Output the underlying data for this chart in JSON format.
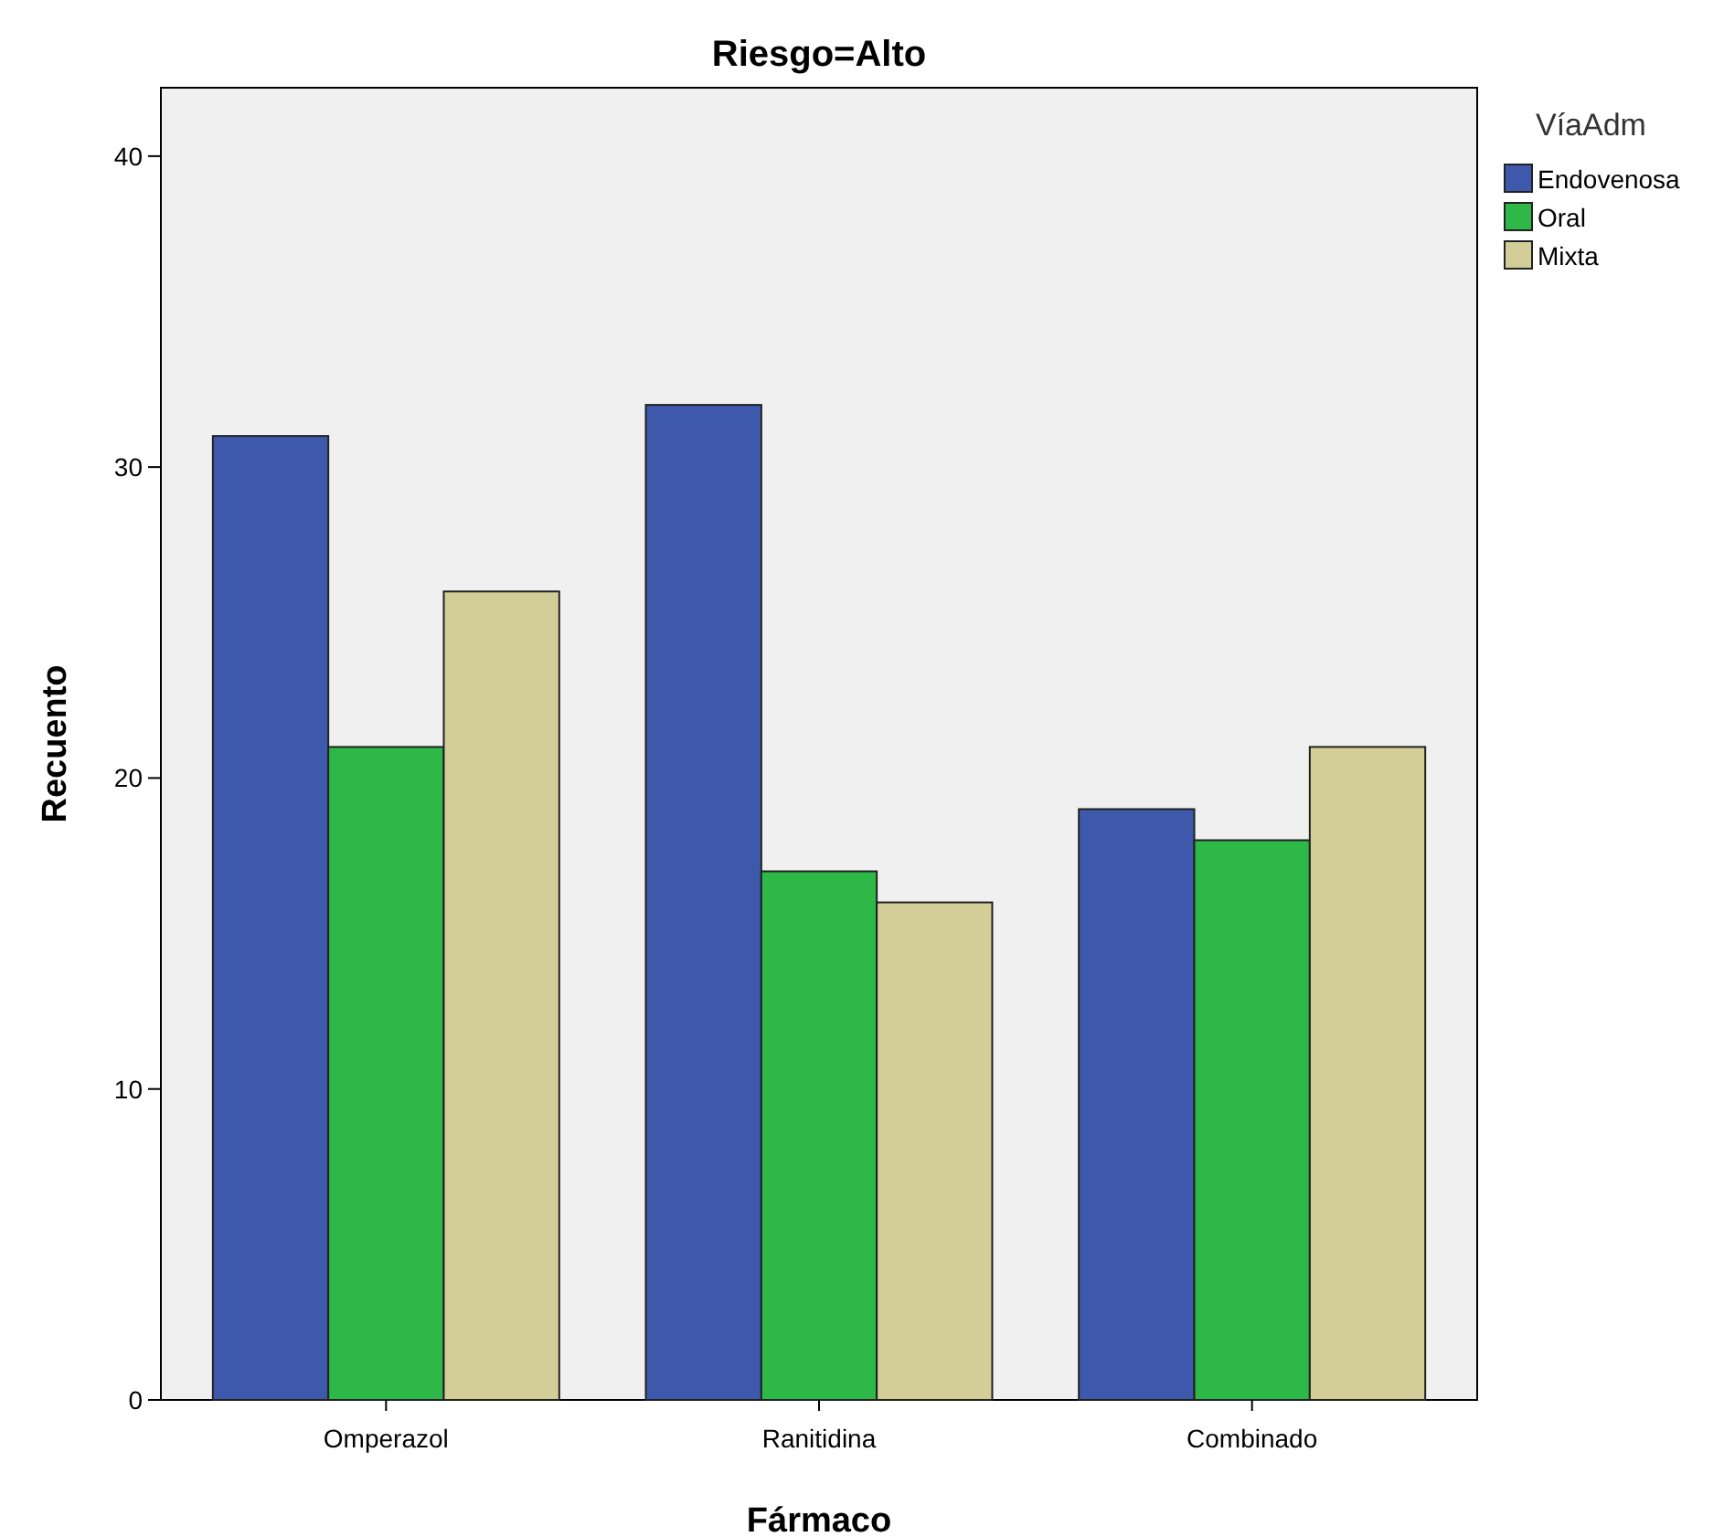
{
  "chart_data": {
    "type": "bar",
    "title": "Riesgo=Alto",
    "xlabel": "Fármaco",
    "ylabel": "Recuento",
    "legend_title": "VíaAdm",
    "categories": [
      "Omperazol",
      "Ranitidina",
      "Combinado"
    ],
    "series": [
      {
        "name": "Endovenosa",
        "color": "#3e58ac",
        "values": [
          31,
          32,
          19
        ]
      },
      {
        "name": "Oral",
        "color": "#2eb848",
        "values": [
          21,
          17,
          18
        ]
      },
      {
        "name": "Mixta",
        "color": "#d3ce97",
        "values": [
          26,
          16,
          21
        ]
      }
    ],
    "ylim": [
      0,
      42.2
    ],
    "yticks": [
      0,
      10,
      20,
      30,
      40
    ],
    "grid": false,
    "legend": "top right"
  }
}
